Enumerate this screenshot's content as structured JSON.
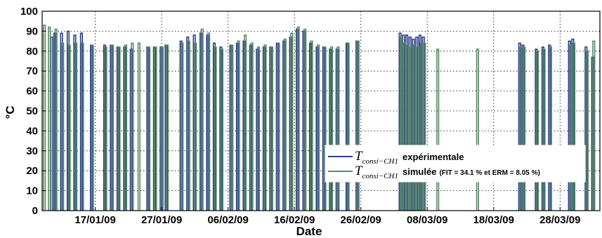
{
  "chart_data": {
    "type": "line",
    "xlabel": "Date",
    "ylabel": "°C",
    "ylim": [
      0,
      100
    ],
    "xlim": [
      "2009-01-09",
      "2009-04-03"
    ],
    "grid": true,
    "legend_position": "lower-right",
    "yticks": [
      "0",
      "10",
      "20",
      "30",
      "40",
      "50",
      "60",
      "70",
      "80",
      "90",
      "100"
    ],
    "xticks": [
      {
        "date": "2009-01-17",
        "label": "17/01/09"
      },
      {
        "date": "2009-01-27",
        "label": "27/01/09"
      },
      {
        "date": "2009-02-06",
        "label": "06/02/09"
      },
      {
        "date": "2009-02-16",
        "label": "16/02/09"
      },
      {
        "date": "2009-02-26",
        "label": "26/02/09"
      },
      {
        "date": "2009-03-08",
        "label": "08/03/09"
      },
      {
        "date": "2009-03-18",
        "label": "18/03/09"
      },
      {
        "date": "2009-03-28",
        "label": "28/03/09"
      }
    ],
    "legend": [
      {
        "symbol": "T",
        "subscript": "consi−CH1",
        "text": "expérimentale",
        "note": "",
        "color": "#2b3f8c"
      },
      {
        "symbol": "T",
        "subscript": "consi−CH1",
        "text": "simulée",
        "note": "(FIT = 34.1 % et ERM = 8.05 %)",
        "color": "#5a8a64"
      }
    ],
    "series": [
      {
        "name": "T consi-CH1 expérimentale",
        "color": "#2b3f8c",
        "x": [
          "2009-01-10T12:00",
          "2009-01-11T00:00",
          "2009-01-12T00:00",
          "2009-01-13T00:00",
          "2009-01-14T00:00",
          "2009-01-15T00:00",
          "2009-01-16T12:00",
          "2009-01-18T12:00",
          "2009-01-19T12:00",
          "2009-01-20T12:00",
          "2009-01-21T12:00",
          "2009-01-22T12:00",
          "2009-01-25T00:00",
          "2009-01-26T00:00",
          "2009-01-27T00:00",
          "2009-01-27T18:00",
          "2009-01-30T00:00",
          "2009-01-31T00:00",
          "2009-02-01T00:00",
          "2009-02-02T00:00",
          "2009-02-03T00:00",
          "2009-02-04T00:00",
          "2009-02-05T00:00",
          "2009-02-06T12:00",
          "2009-02-07T12:00",
          "2009-02-08T12:00",
          "2009-02-09T12:00",
          "2009-02-10T12:00",
          "2009-02-11T12:00",
          "2009-02-12T12:00",
          "2009-02-13T12:00",
          "2009-02-14T12:00",
          "2009-02-15T12:00",
          "2009-02-16T12:00",
          "2009-02-17T12:00",
          "2009-02-18T12:00",
          "2009-02-19T12:00",
          "2009-02-20T12:00",
          "2009-02-21T12:00",
          "2009-02-22T12:00",
          "2009-02-24T00:00",
          "2009-02-25T12:00",
          "2009-03-04T00:00",
          "2009-03-04T12:00",
          "2009-03-05T00:00",
          "2009-03-05T12:00",
          "2009-03-06T00:00",
          "2009-03-06T12:00",
          "2009-03-07T00:00",
          "2009-03-07T12:00",
          "2009-03-22T00:00",
          "2009-03-22T12:00",
          "2009-03-24T12:00",
          "2009-03-25T12:00",
          "2009-03-26T12:00",
          "2009-03-29T12:00",
          "2009-03-30T00:00",
          "2009-04-01T00:00",
          "2009-04-02T00:00"
        ],
        "values": [
          87,
          89,
          89,
          90,
          88,
          89,
          83,
          83,
          83,
          82,
          82,
          81,
          82,
          82,
          82,
          83,
          85,
          87,
          88,
          89,
          88,
          84,
          82,
          83,
          84,
          85,
          83,
          81,
          82,
          82,
          84,
          85,
          87,
          91,
          90,
          84,
          82,
          82,
          81,
          81,
          84,
          85,
          89,
          88,
          88,
          87,
          86,
          87,
          88,
          87,
          84,
          83,
          81,
          82,
          83,
          85,
          86,
          82,
          77
        ]
      },
      {
        "name": "T consi-CH1 simulée",
        "color": "#5a8a64",
        "x": [
          "2009-01-09T06:00",
          "2009-01-10T00:00",
          "2009-01-11T00:00",
          "2009-01-12T00:00",
          "2009-01-13T00:00",
          "2009-01-14T00:00",
          "2009-01-15T00:00",
          "2009-01-16T12:00",
          "2009-01-18T12:00",
          "2009-01-19T12:00",
          "2009-01-20T12:00",
          "2009-01-21T12:00",
          "2009-01-22T12:00",
          "2009-01-23T12:00",
          "2009-01-25T00:00",
          "2009-01-26T00:00",
          "2009-01-27T00:00",
          "2009-01-27T18:00",
          "2009-01-30T00:00",
          "2009-01-31T00:00",
          "2009-02-01T00:00",
          "2009-02-02T00:00",
          "2009-02-03T00:00",
          "2009-02-04T00:00",
          "2009-02-05T00:00",
          "2009-02-06T12:00",
          "2009-02-07T12:00",
          "2009-02-08T12:00",
          "2009-02-09T12:00",
          "2009-02-10T12:00",
          "2009-02-11T12:00",
          "2009-02-12T12:00",
          "2009-02-13T12:00",
          "2009-02-14T12:00",
          "2009-02-15T12:00",
          "2009-02-16T12:00",
          "2009-02-17T12:00",
          "2009-02-18T12:00",
          "2009-02-19T12:00",
          "2009-02-20T12:00",
          "2009-02-21T12:00",
          "2009-02-22T12:00",
          "2009-02-24T00:00",
          "2009-02-25T12:00",
          "2009-03-04T00:00",
          "2009-03-04T12:00",
          "2009-03-05T00:00",
          "2009-03-05T12:00",
          "2009-03-06T00:00",
          "2009-03-06T12:00",
          "2009-03-07T00:00",
          "2009-03-07T12:00",
          "2009-03-09T12:00",
          "2009-03-15T12:00",
          "2009-03-22T00:00",
          "2009-03-22T12:00",
          "2009-03-24T12:00",
          "2009-03-25T12:00",
          "2009-03-26T12:00",
          "2009-03-29T12:00",
          "2009-03-30T00:00",
          "2009-04-01T00:00",
          "2009-04-02T00:00"
        ],
        "values": [
          93,
          92,
          91,
          84,
          83,
          84,
          84,
          83,
          82,
          83,
          82,
          83,
          84,
          84,
          82,
          82,
          82,
          83,
          84,
          85,
          84,
          91,
          89,
          82,
          81,
          83,
          85,
          88,
          84,
          82,
          83,
          82,
          84,
          86,
          89,
          92,
          91,
          85,
          83,
          82,
          82,
          82,
          84,
          85,
          87,
          84,
          83,
          82,
          83,
          82,
          84,
          84,
          81,
          81,
          82,
          82,
          80,
          81,
          82,
          83,
          84,
          80,
          85
        ]
      }
    ]
  }
}
